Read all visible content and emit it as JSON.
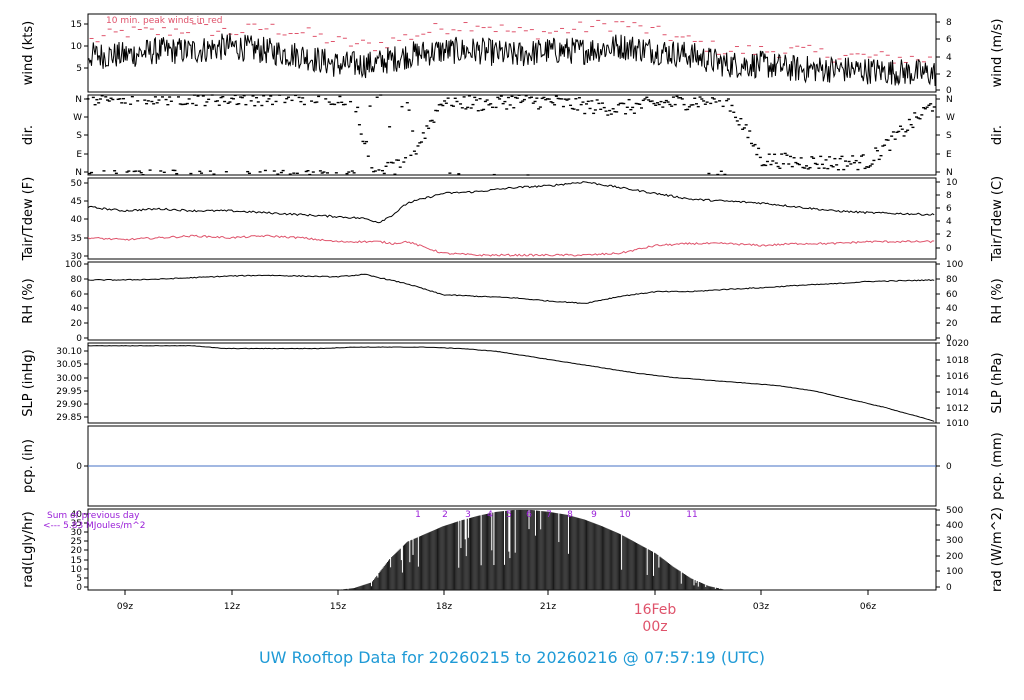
{
  "title": "UW Rooftop Data for 20260215  to  20260216 @ 07:57:19  (UTC)",
  "x_axis": {
    "ticks": [
      "09z",
      "12z",
      "15z",
      "18z",
      "21z",
      "00z",
      "03z",
      "06z"
    ],
    "date_label": "16Feb",
    "date_hour_label": "00z"
  },
  "colors": {
    "title": "#1f9ad6",
    "dewpoint": "#df536b",
    "peak": "#df536b",
    "annotation": "#9a1fd8",
    "precip": "#4472c4"
  },
  "chart_data": [
    {
      "id": "wind",
      "type": "line",
      "ylabel_left": "wind (kts)",
      "ylabel_right": "wind (m/s)",
      "left_ticks": [
        "5",
        "10",
        "15"
      ],
      "right_ticks": [
        "0",
        "2",
        "4",
        "6",
        "8"
      ],
      "ylim": [
        0,
        17
      ],
      "annotation": "10 min. peak winds in red",
      "x_hours": [
        8.0,
        9.0,
        10.0,
        11.0,
        12.0,
        13.0,
        14.0,
        15.0,
        16.0,
        17.0,
        18.0,
        19.0,
        20.0,
        21.0,
        22.0,
        23.0,
        24.0,
        25.0,
        26.0,
        27.0,
        28.0,
        29.0,
        31.9
      ],
      "series": [
        {
          "values": [
            8,
            8,
            9,
            9,
            10,
            9,
            8,
            6,
            6,
            8,
            9,
            9,
            8,
            9,
            9,
            10,
            9,
            8,
            6,
            6,
            5,
            5,
            4
          ]
        },
        {
          "values": [
            11,
            13,
            13,
            14,
            13,
            14,
            13,
            11,
            10,
            12,
            14,
            15,
            13,
            13,
            14,
            15,
            13,
            11,
            9,
            9,
            9,
            8,
            7
          ]
        }
      ]
    },
    {
      "id": "dir",
      "type": "scatter",
      "ylabel_left": "dir.",
      "ylabel_right": "dir.",
      "left_ticks": [
        "N",
        "E",
        "S",
        "W",
        "N"
      ],
      "right_ticks": [
        "N",
        "E",
        "S",
        "W",
        "N"
      ],
      "ylim": [
        0,
        360
      ],
      "x_hours": [
        8.0,
        10.0,
        12.0,
        14.0,
        15.5,
        16.0,
        17.0,
        18.0,
        19.0,
        20.0,
        21.0,
        22.0,
        23.0,
        24.0,
        25.0,
        26.0,
        27.0,
        28.0,
        29.0,
        30.0,
        31.9
      ],
      "series": [
        {
          "values": [
            345,
            350,
            345,
            350,
            350,
            20,
            45,
            340,
            320,
            335,
            330,
            310,
            300,
            320,
            330,
            345,
            70,
            60,
            55,
            60,
            330
          ]
        }
      ]
    },
    {
      "id": "temp",
      "type": "line",
      "ylabel_left": "Tair/Tdew (F)",
      "ylabel_right": "Tair/Tdew (C)",
      "left_ticks": [
        "30",
        "35",
        "40",
        "45",
        "50"
      ],
      "right_ticks": [
        "0",
        "2",
        "4",
        "6",
        "8",
        "10"
      ],
      "ylim": [
        29.5,
        50.5
      ],
      "x_hours": [
        8.0,
        9.0,
        10.0,
        11.0,
        12.0,
        13.0,
        14.0,
        15.0,
        15.8,
        16.2,
        16.6,
        17.0,
        18.0,
        19.0,
        20.0,
        21.0,
        22.0,
        23.0,
        24.0,
        25.0,
        26.0,
        27.0,
        28.0,
        29.0,
        30.0,
        31.9
      ],
      "series": [
        {
          "values": [
            43,
            42,
            42.5,
            42,
            42,
            41.5,
            41,
            40.5,
            40,
            39,
            41,
            44,
            46.5,
            47,
            48,
            48.5,
            49.5,
            48,
            46.5,
            45,
            44.5,
            44,
            43,
            42,
            41.5,
            41
          ]
        },
        {
          "values": [
            35,
            34.5,
            35,
            35.5,
            35,
            35.5,
            35,
            34,
            34,
            34,
            33.5,
            34,
            31,
            30.5,
            30.5,
            30.5,
            30.5,
            31,
            33,
            33.5,
            33.5,
            33,
            33.5,
            33.5,
            34,
            34
          ]
        }
      ]
    },
    {
      "id": "rh",
      "type": "line",
      "ylabel_left": "RH (%)",
      "ylabel_right": "RH (%)",
      "left_ticks": [
        "0",
        "20",
        "40",
        "60",
        "80",
        "100"
      ],
      "right_ticks": [
        "0",
        "20",
        "40",
        "60",
        "80",
        "100"
      ],
      "ylim": [
        0,
        100
      ],
      "x_hours": [
        8.0,
        9.0,
        10.0,
        11.0,
        12.0,
        13.0,
        14.0,
        15.0,
        15.8,
        16.2,
        17.0,
        18.0,
        19.0,
        20.0,
        21.0,
        22.0,
        23.0,
        24.0,
        25.0,
        26.0,
        27.0,
        28.0,
        29.0,
        30.0,
        31.9
      ],
      "series": [
        {
          "values": [
            77,
            77,
            78,
            80,
            82,
            83,
            82,
            81,
            84,
            80,
            72,
            58,
            56,
            54,
            50,
            47,
            56,
            62,
            62,
            65,
            67,
            70,
            72,
            75,
            77
          ]
        }
      ]
    },
    {
      "id": "slp",
      "type": "line",
      "ylabel_left": "SLP (inHg)",
      "ylabel_right": "SLP (hPa)",
      "left_ticks": [
        "29.85",
        "29.90",
        "29.95",
        "30.00",
        "30.05",
        "30.10"
      ],
      "right_ticks": [
        "1010",
        "1012",
        "1014",
        "1016",
        "1018",
        "1020"
      ],
      "ylim": [
        29.83,
        30.12
      ],
      "x_hours": [
        8.0,
        9.0,
        10.0,
        11.0,
        11.8,
        12.5,
        13.5,
        14.5,
        15.5,
        16.5,
        17.5,
        18.5,
        19.5,
        20.5,
        21.5,
        22.5,
        23.5,
        24.5,
        25.5,
        26.5,
        27.5,
        28.5,
        29.5,
        30.5,
        31.9
      ],
      "series": [
        {
          "values": [
            30.11,
            30.11,
            30.11,
            30.11,
            30.1,
            30.1,
            30.1,
            30.1,
            30.105,
            30.105,
            30.105,
            30.1,
            30.09,
            30.07,
            30.05,
            30.03,
            30.01,
            29.995,
            29.985,
            29.975,
            29.965,
            29.945,
            29.915,
            29.885,
            29.835
          ]
        }
      ]
    },
    {
      "id": "pcp",
      "type": "line",
      "ylabel_left": "pcp. (in)",
      "ylabel_right": "pcp. (mm)",
      "left_ticks": [
        "0"
      ],
      "right_ticks": [
        "0"
      ],
      "ylim": [
        -1,
        1
      ],
      "x_hours": [
        8.0,
        31.9
      ],
      "series": [
        {
          "values": [
            0,
            0
          ]
        }
      ]
    },
    {
      "id": "rad",
      "type": "bar",
      "ylabel_left": "rad(Lgly/hr)",
      "ylabel_right": "rad (W/m^2)",
      "left_ticks": [
        "0",
        "5",
        "10",
        "15",
        "20",
        "25",
        "30",
        "35",
        "40"
      ],
      "right_ticks": [
        "0",
        "100",
        "200",
        "300",
        "400",
        "500"
      ],
      "ylim": [
        0,
        42
      ],
      "annotation_lines": [
        "Sum of previous day",
        "<--- 5.83 MJoules/m^2"
      ],
      "hour_labels": [
        "1",
        "2",
        "3",
        "4",
        "5",
        "6",
        "7",
        "8",
        "9",
        "10",
        "11"
      ],
      "x_hours": [
        15.0,
        15.5,
        16.0,
        16.5,
        17.0,
        17.5,
        18.0,
        18.5,
        19.0,
        19.5,
        20.0,
        20.5,
        21.0,
        21.5,
        22.0,
        22.5,
        23.0,
        23.5,
        24.0,
        24.5,
        25.0,
        25.5,
        26.0
      ],
      "series": [
        {
          "values": [
            0,
            1,
            4,
            16,
            25,
            29,
            33,
            36,
            38.5,
            40.5,
            41.5,
            41.5,
            40.5,
            39,
            36.5,
            33,
            29,
            24,
            19,
            12,
            6,
            2,
            0
          ]
        }
      ]
    }
  ]
}
